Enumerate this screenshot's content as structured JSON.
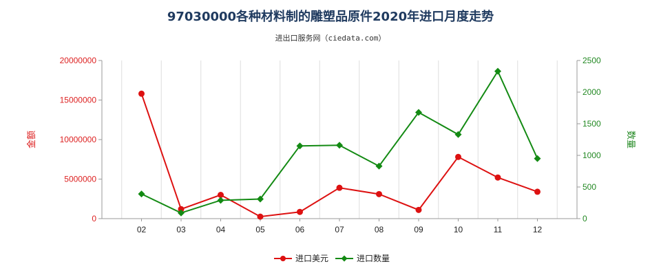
{
  "chart_data": {
    "type": "line",
    "title": "97030000各种材料制的雕塑品原件2020年进口月度走势",
    "subtitle": "进出口服务网（ciedata.com）",
    "categories": [
      "02",
      "03",
      "04",
      "05",
      "06",
      "07",
      "08",
      "09",
      "10",
      "11",
      "12"
    ],
    "y_left": {
      "label": "金额",
      "range": [
        0,
        20000000
      ],
      "ticks": [
        "0",
        "5000000",
        "10000000",
        "15000000",
        "20000000"
      ],
      "color": "#dd2222"
    },
    "y_right": {
      "label": "数量",
      "range": [
        0,
        2500
      ],
      "ticks": [
        "0",
        "500",
        "1000",
        "1500",
        "2000",
        "2500"
      ],
      "color": "#228822"
    },
    "series": [
      {
        "name": "进口美元",
        "axis": "left",
        "color": "#dd1111",
        "values": [
          15800000,
          1200000,
          3000000,
          250000,
          850000,
          3900000,
          3100000,
          1100000,
          7800000,
          5200000,
          3400000
        ]
      },
      {
        "name": "进口数量",
        "axis": "right",
        "color": "#138a13",
        "values": [
          390,
          90,
          290,
          310,
          1150,
          1160,
          830,
          1680,
          1330,
          2330,
          950
        ]
      }
    ],
    "grid": "vertical",
    "legend": "bottom-center"
  }
}
